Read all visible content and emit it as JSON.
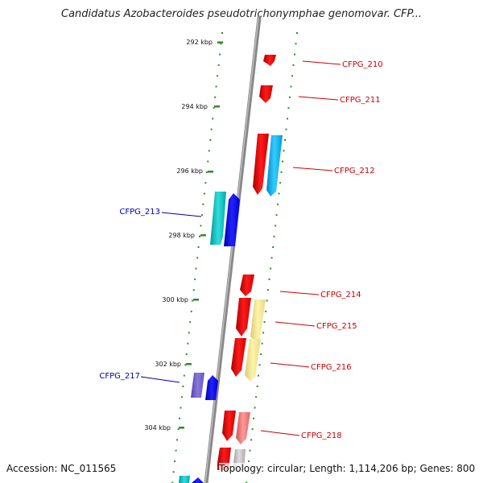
{
  "title": "Candidatus Azobacteroides pseudotrichonymphae genomovar. CFP...",
  "ruler": {
    "unit": "kbp",
    "ticks": [
      "292 kbp",
      "294 kbp",
      "296 kbp",
      "298 kbp",
      "300 kbp",
      "302 kbp",
      "304 kbp"
    ]
  },
  "genes": [
    {
      "name": "CFPG_210",
      "strand": "plus"
    },
    {
      "name": "CFPG_211",
      "strand": "plus"
    },
    {
      "name": "CFPG_212",
      "strand": "plus"
    },
    {
      "name": "CFPG_213",
      "strand": "minus"
    },
    {
      "name": "CFPG_214",
      "strand": "plus"
    },
    {
      "name": "CFPG_215",
      "strand": "plus"
    },
    {
      "name": "CFPG_216",
      "strand": "plus"
    },
    {
      "name": "CFPG_217",
      "strand": "minus"
    },
    {
      "name": "CFPG_218",
      "strand": "plus"
    }
  ],
  "colors": {
    "plus_label": "#cc0000",
    "minus_label": "#0000aa",
    "backbone": "#888888",
    "ticks": "#2e8b2e"
  },
  "footer": {
    "accession": "Accession: NC_011565",
    "topology": "Topology: circular; Length: 1,114,206 bp; Genes: 800"
  }
}
